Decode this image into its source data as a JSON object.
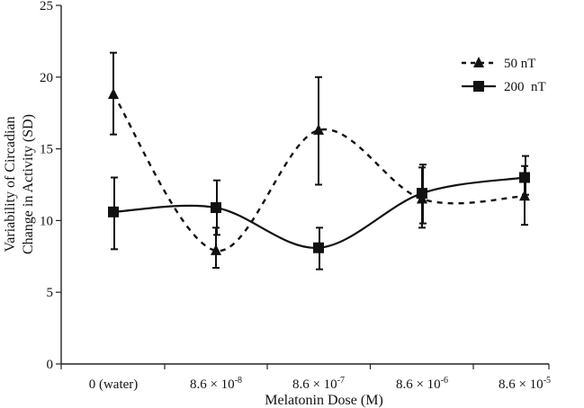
{
  "chart_data": {
    "type": "line",
    "title": "",
    "xlabel": "Melatonin Dose (M)",
    "ylabel_line1": "Variability of Circadian",
    "ylabel_line2": "Change in Activity (SD)",
    "ylim": [
      0,
      25
    ],
    "yticks": [
      "0",
      "5",
      "10",
      "15",
      "20",
      "25"
    ],
    "categories": [
      {
        "base": "0 (water)",
        "exp": ""
      },
      {
        "base": "8.6 × 10",
        "exp": "-8"
      },
      {
        "base": "8.6 × 10",
        "exp": "-7"
      },
      {
        "base": "8.6 × 10",
        "exp": "-6"
      },
      {
        "base": "8.6 × 10",
        "exp": "-5"
      }
    ],
    "series": [
      {
        "name": "50 nT",
        "marker": "triangle",
        "line_style": "dashed",
        "values": [
          18.8,
          7.9,
          16.3,
          11.5,
          11.7
        ],
        "err_low": [
          16.0,
          6.7,
          12.5,
          9.5,
          9.7
        ],
        "err_high": [
          21.7,
          9.5,
          20.0,
          13.7,
          13.8
        ]
      },
      {
        "name": "200  nT",
        "marker": "square",
        "line_style": "solid",
        "values": [
          10.6,
          10.9,
          8.1,
          11.9,
          13.0
        ],
        "err_low": [
          8.0,
          9.0,
          6.6,
          9.8,
          11.8
        ],
        "err_high": [
          13.0,
          12.8,
          9.5,
          13.9,
          14.5
        ]
      }
    ],
    "legend_position": "top-right"
  }
}
